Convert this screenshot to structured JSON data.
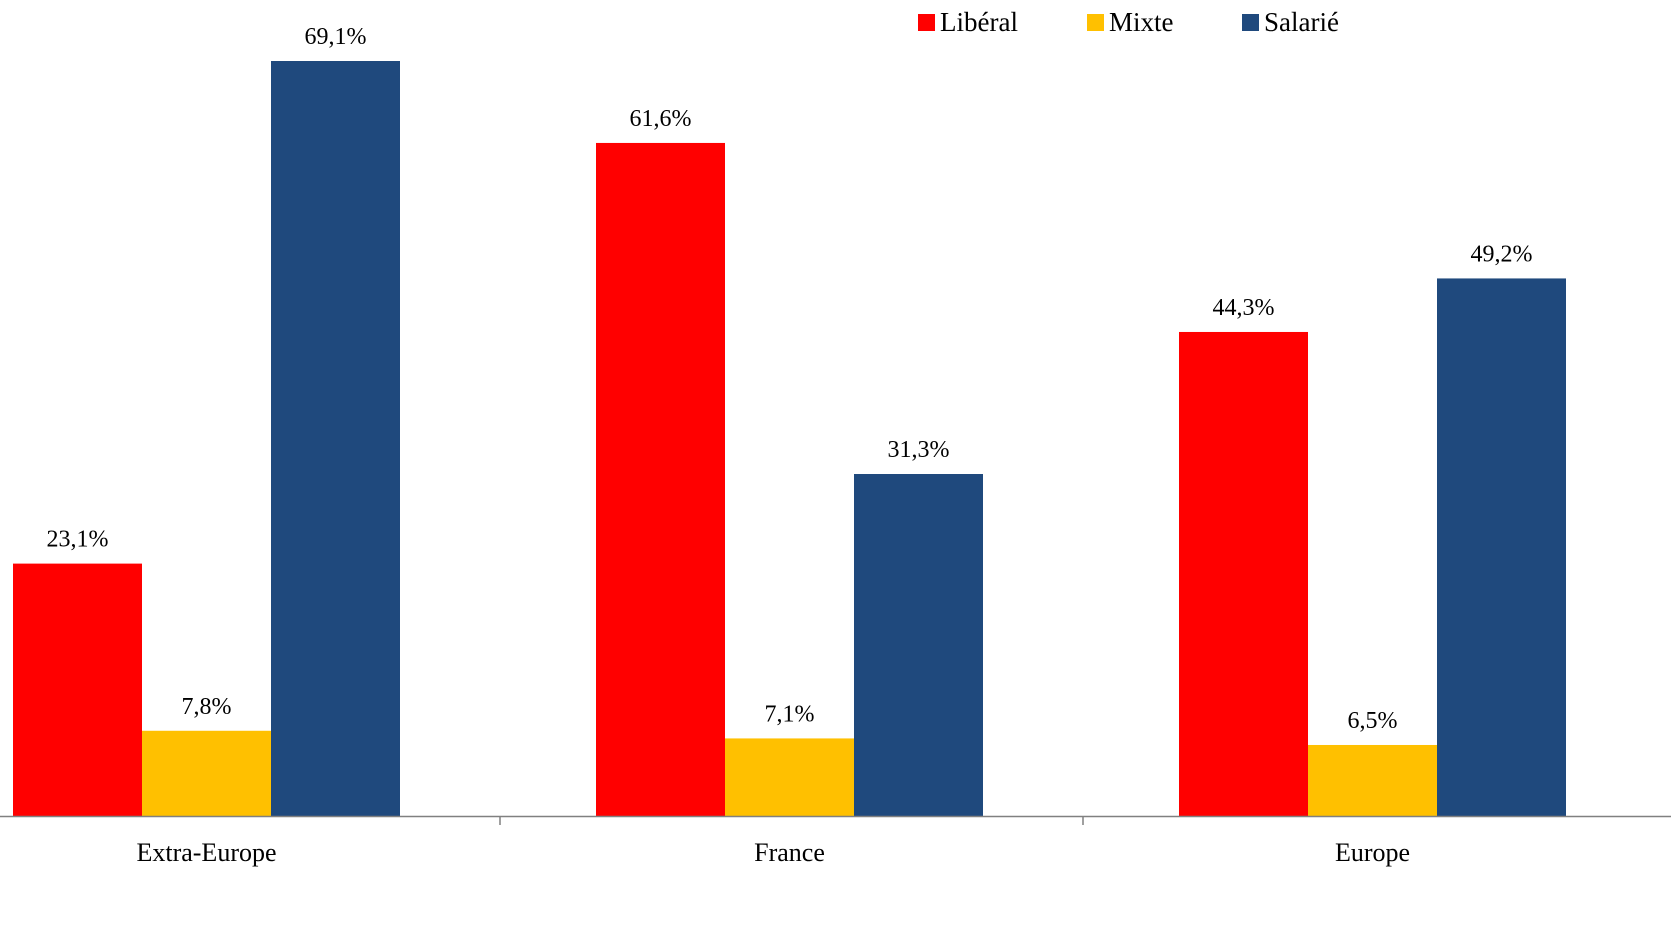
{
  "chart_data": {
    "type": "bar",
    "categories": [
      "Extra-Europe",
      "France",
      "Europe"
    ],
    "series": [
      {
        "name": "Libéral",
        "color": "#ff0000",
        "values": [
          23.1,
          61.6,
          44.3
        ],
        "labels": [
          "23,1%",
          "61,6%",
          "44,3%"
        ]
      },
      {
        "name": "Mixte",
        "color": "#ffc000",
        "values": [
          7.8,
          7.1,
          6.5
        ],
        "labels": [
          "7,8%",
          "7,1%",
          "6,5%"
        ]
      },
      {
        "name": "Salarié",
        "color": "#1f497d",
        "values": [
          69.1,
          31.3,
          49.2
        ],
        "labels": [
          "69,1%",
          "31,3%",
          "49,2%"
        ]
      }
    ],
    "title": "",
    "xlabel": "",
    "ylabel": "",
    "ylim": [
      0,
      75
    ],
    "grid": false,
    "legend_position": "top-right",
    "axis_color": "#808080"
  }
}
